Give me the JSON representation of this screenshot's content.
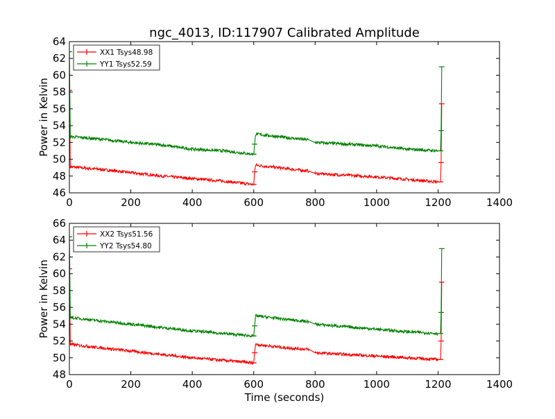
{
  "chart_data": [
    {
      "type": "line",
      "title": "ngc_4013, ID:117907 Calibrated Amplitude",
      "xlabel": "",
      "ylabel": "Power in Kelvin",
      "xlim": [
        0,
        1400
      ],
      "ylim": [
        46,
        64
      ],
      "xticks": [
        0,
        200,
        400,
        600,
        800,
        1000,
        1200,
        1400
      ],
      "yticks": [
        46,
        48,
        50,
        52,
        54,
        56,
        58,
        60,
        62,
        64
      ],
      "legend_position": "top-left",
      "grid": false,
      "series": [
        {
          "name": "XX1 Tsys48.98",
          "color": "#ff0000",
          "points": [
            [
              0,
              58.2
            ],
            [
              3,
              49.1
            ],
            [
              100,
              48.8
            ],
            [
              200,
              48.4
            ],
            [
              300,
              48.0
            ],
            [
              400,
              47.7
            ],
            [
              500,
              47.4
            ],
            [
              598,
              47.0
            ],
            [
              600,
              47.0
            ],
            [
              603,
              48.5
            ],
            [
              606,
              49.3
            ],
            [
              700,
              48.9
            ],
            [
              780,
              48.6
            ],
            [
              800,
              48.3
            ],
            [
              900,
              48.1
            ],
            [
              1000,
              47.9
            ],
            [
              1100,
              47.6
            ],
            [
              1200,
              47.3
            ],
            [
              1208,
              47.3
            ],
            [
              1210,
              49.6
            ],
            [
              1212,
              56.6
            ]
          ]
        },
        {
          "name": "YY1 Tsys52.59",
          "color": "#008000",
          "points": [
            [
              0,
              62.8
            ],
            [
              3,
              52.7
            ],
            [
              100,
              52.4
            ],
            [
              200,
              52.0
            ],
            [
              300,
              51.7
            ],
            [
              400,
              51.2
            ],
            [
              500,
              51.0
            ],
            [
              598,
              50.6
            ],
            [
              600,
              50.6
            ],
            [
              603,
              51.8
            ],
            [
              606,
              53.0
            ],
            [
              700,
              52.6
            ],
            [
              780,
              52.3
            ],
            [
              800,
              52.0
            ],
            [
              900,
              51.8
            ],
            [
              1000,
              51.6
            ],
            [
              1100,
              51.2
            ],
            [
              1200,
              51.0
            ],
            [
              1208,
              51.0
            ],
            [
              1210,
              53.4
            ],
            [
              1212,
              61.0
            ]
          ]
        }
      ]
    },
    {
      "type": "line",
      "title": "",
      "xlabel": "Time (seconds)",
      "ylabel": "Power in Kelvin",
      "xlim": [
        0,
        1400
      ],
      "ylim": [
        48,
        66
      ],
      "xticks": [
        0,
        200,
        400,
        600,
        800,
        1000,
        1200,
        1400
      ],
      "yticks": [
        48,
        50,
        52,
        54,
        56,
        58,
        60,
        62,
        64,
        66
      ],
      "legend_position": "top-left",
      "grid": false,
      "series": [
        {
          "name": "XX2 Tsys51.56",
          "color": "#ff0000",
          "points": [
            [
              0,
              60.6
            ],
            [
              3,
              51.6
            ],
            [
              100,
              51.2
            ],
            [
              200,
              50.8
            ],
            [
              300,
              50.4
            ],
            [
              400,
              50.0
            ],
            [
              500,
              49.7
            ],
            [
              598,
              49.4
            ],
            [
              600,
              49.4
            ],
            [
              603,
              50.6
            ],
            [
              606,
              51.6
            ],
            [
              700,
              51.2
            ],
            [
              780,
              51.0
            ],
            [
              800,
              50.6
            ],
            [
              900,
              50.4
            ],
            [
              1000,
              50.2
            ],
            [
              1100,
              50.0
            ],
            [
              1200,
              49.8
            ],
            [
              1208,
              49.8
            ],
            [
              1210,
              52.0
            ],
            [
              1212,
              59.0
            ]
          ]
        },
        {
          "name": "YY2 Tsys54.80",
          "color": "#008000",
          "points": [
            [
              0,
              64.4
            ],
            [
              3,
              54.8
            ],
            [
              100,
              54.4
            ],
            [
              200,
              54.0
            ],
            [
              300,
              53.6
            ],
            [
              400,
              53.2
            ],
            [
              500,
              52.9
            ],
            [
              598,
              52.6
            ],
            [
              600,
              52.6
            ],
            [
              603,
              53.8
            ],
            [
              606,
              55.0
            ],
            [
              700,
              54.6
            ],
            [
              780,
              54.3
            ],
            [
              800,
              54.0
            ],
            [
              900,
              53.7
            ],
            [
              1000,
              53.4
            ],
            [
              1100,
              53.1
            ],
            [
              1200,
              52.9
            ],
            [
              1208,
              52.9
            ],
            [
              1210,
              55.4
            ],
            [
              1212,
              63.0
            ]
          ]
        }
      ]
    }
  ]
}
